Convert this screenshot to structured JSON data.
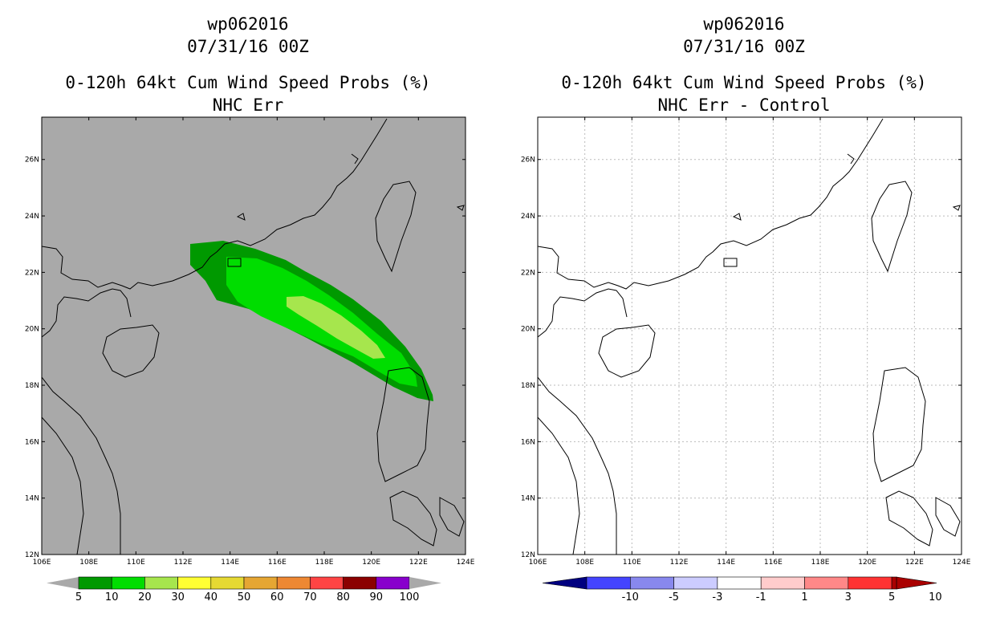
{
  "left_panel": {
    "title_line1": "wp062016",
    "title_line2": "07/31/16 00Z",
    "title_line3": "0-120h 64kt Cum Wind Speed Probs (%)",
    "title_line4": "NHC Err",
    "background_color": "#a9a9a9",
    "colorbar": {
      "colors": [
        "#009900",
        "#00dd00",
        "#a6e64d",
        "#ffff33",
        "#e6d933",
        "#e6a633",
        "#ee8833",
        "#ff4444",
        "#8b0000",
        "#8800cc"
      ],
      "labels": [
        "5",
        "10",
        "20",
        "30",
        "40",
        "50",
        "60",
        "70",
        "80",
        "90",
        "100"
      ]
    },
    "probability_contours": [
      {
        "level": "5-10",
        "color": "#009900"
      },
      {
        "level": "10-20",
        "color": "#00dd00"
      },
      {
        "level": "20-30",
        "color": "#a6e64d"
      }
    ]
  },
  "right_panel": {
    "title_line1": "wp062016",
    "title_line2": "07/31/16 00Z",
    "title_line3": "0-120h 64kt Cum Wind Speed Probs (%)",
    "title_line4": "NHC Err - Control",
    "background_color": "#ffffff",
    "colorbar": {
      "colors": [
        "#0000cc",
        "#4444ff",
        "#8888ee",
        "#ccccff",
        "#ffffff",
        "#ffcccc",
        "#ff8888",
        "#ff3333",
        "#aa0000"
      ],
      "labels": [
        "-10",
        "-5",
        "-3",
        "-1",
        "1",
        "3",
        "5",
        "10"
      ]
    }
  },
  "axes": {
    "lon_ticks": [
      "106E",
      "108E",
      "110E",
      "112E",
      "114E",
      "116E",
      "118E",
      "120E",
      "122E",
      "124E"
    ],
    "lat_ticks": [
      "12N",
      "14N",
      "16N",
      "18N",
      "20N",
      "22N",
      "24N",
      "26N"
    ]
  }
}
